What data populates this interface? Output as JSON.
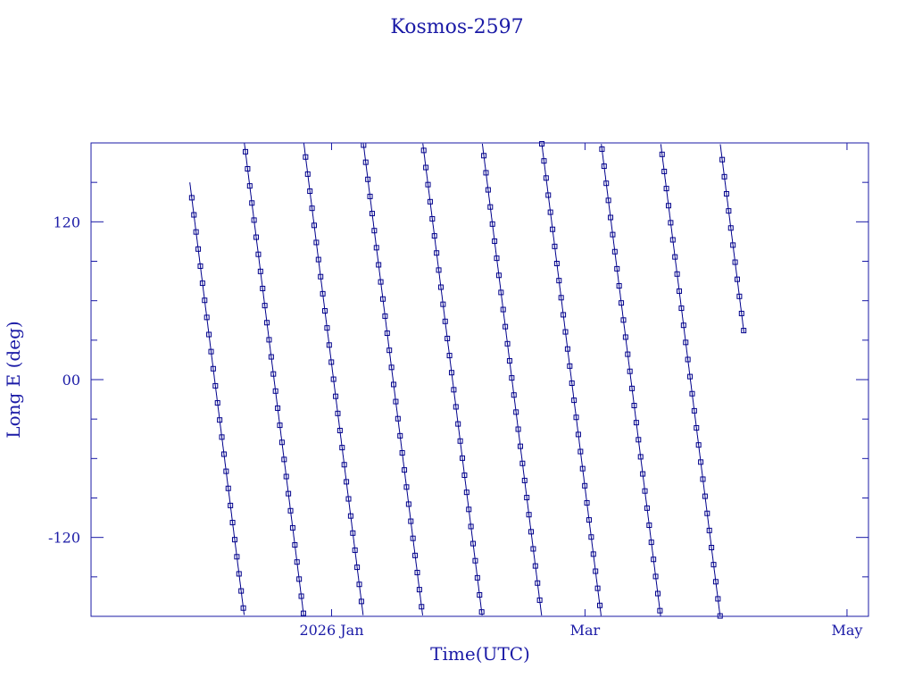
{
  "chart_data": {
    "type": "scatter",
    "title": "Kosmos-2597",
    "xlabel": "Time(UTC)",
    "ylabel": "Long E (deg)",
    "x_ticks": [
      {
        "label": "2026 Jan",
        "date": "2026-01-01"
      },
      {
        "label": "Mar",
        "date": "2026-03-01"
      },
      {
        "label": "May",
        "date": "2026-05-01"
      }
    ],
    "xlim": [
      "2025-11-06",
      "2026-05-06"
    ],
    "ylim": [
      -180,
      180
    ],
    "y_ticks": [
      -120,
      0,
      120
    ],
    "y_tick_labels": [
      "-120",
      "00",
      "120"
    ],
    "grid": false,
    "series": [
      {
        "data_range": [
          "2025-11-29",
          "2026-04-07"
        ],
        "drift_deg_per_day": -26,
        "color": "#00008b",
        "marker": "square"
      }
    ]
  }
}
